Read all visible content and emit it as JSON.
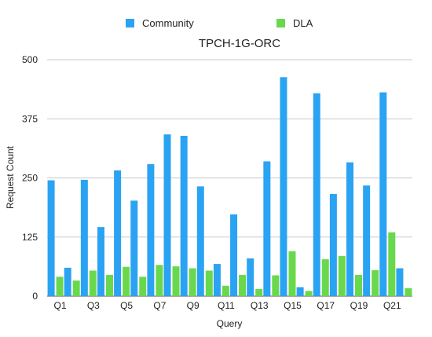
{
  "chart_data": {
    "type": "bar",
    "title": "TPCH-1G-ORC",
    "xlabel": "Query",
    "ylabel": "Request Count",
    "ylim": [
      0,
      500
    ],
    "yticks": [
      0,
      125,
      250,
      375,
      500
    ],
    "grid": true,
    "legend_position": "top",
    "categories": [
      "Q1",
      "Q2",
      "Q3",
      "Q4",
      "Q5",
      "Q6",
      "Q7",
      "Q8",
      "Q9",
      "Q10",
      "Q11",
      "Q12",
      "Q13",
      "Q14",
      "Q15",
      "Q16",
      "Q17",
      "Q18",
      "Q19",
      "Q20",
      "Q21",
      "Q22"
    ],
    "shown_category_labels": [
      "Q1",
      "Q3",
      "Q5",
      "Q7",
      "Q9",
      "Q11",
      "Q13",
      "Q15",
      "Q17",
      "Q19",
      "Q21"
    ],
    "series": [
      {
        "name": "Community",
        "color": "#2aa3f3",
        "values": [
          245,
          60,
          246,
          146,
          266,
          202,
          279,
          342,
          339,
          232,
          68,
          173,
          80,
          285,
          463,
          19,
          429,
          216,
          283,
          234,
          431,
          59
        ]
      },
      {
        "name": "DLA",
        "color": "#6ad84c",
        "values": [
          41,
          33,
          54,
          45,
          62,
          41,
          66,
          63,
          59,
          54,
          22,
          45,
          15,
          44,
          95,
          11,
          78,
          85,
          45,
          55,
          135,
          17
        ]
      }
    ]
  }
}
